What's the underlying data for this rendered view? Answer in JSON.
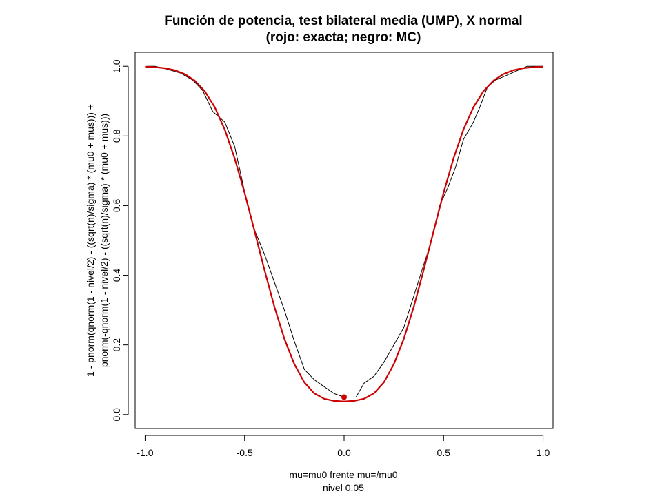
{
  "chart_data": {
    "type": "line",
    "title": "Función de potencia, test bilateral media (UMP), X normal",
    "subtitle": "(rojo: exacta; negro: MC)",
    "xlabel": [
      "mu=mu0 frente mu=/mu0",
      "nivel 0.05"
    ],
    "ylabel": [
      "1 - pnorm(qnorm(1 - nivel/2) - ((sqrt(n)/sigma) * (mu0 + mus))) +",
      "pnorm(-qnorm(1 - nivel/2) - ((sqrt(n)/sigma) * (mu0 + mus)))"
    ],
    "xlim": [
      -1.05,
      1.05
    ],
    "ylim": [
      -0.04,
      1.04
    ],
    "x_ticks": [
      -1.0,
      -0.5,
      0.0,
      0.5,
      1.0
    ],
    "x_tick_labels": [
      "-1.0",
      "-0.5",
      "0.0",
      "0.5",
      "1.0"
    ],
    "y_ticks": [
      0.0,
      0.2,
      0.4,
      0.6,
      0.8,
      1.0
    ],
    "y_tick_labels": [
      "0.0",
      "0.2",
      "0.4",
      "0.6",
      "0.8",
      "1.0"
    ],
    "hline": 0.05,
    "grid": false,
    "series": [
      {
        "color": "#cc0000",
        "x": [
          -1.0,
          -0.95,
          -0.9,
          -0.85,
          -0.8,
          -0.75,
          -0.7,
          -0.65,
          -0.6,
          -0.55,
          -0.5,
          -0.45,
          -0.4,
          -0.35,
          -0.3,
          -0.25,
          -0.2,
          -0.15,
          -0.1,
          -0.05,
          0.0,
          0.05,
          0.1,
          0.15,
          0.2,
          0.25,
          0.3,
          0.35,
          0.4,
          0.45,
          0.5,
          0.55,
          0.6,
          0.65,
          0.7,
          0.75,
          0.8,
          0.85,
          0.9,
          0.95,
          1.0
        ],
        "y": [
          0.9988,
          0.9975,
          0.9945,
          0.9885,
          0.9774,
          0.9586,
          0.9282,
          0.8826,
          0.8187,
          0.7358,
          0.6371,
          0.5273,
          0.4149,
          0.3092,
          0.2175,
          0.1446,
          0.0925,
          0.0608,
          0.0455,
          0.0394,
          0.0378,
          0.0394,
          0.0455,
          0.0608,
          0.0925,
          0.1446,
          0.2175,
          0.3092,
          0.4149,
          0.5273,
          0.6371,
          0.7358,
          0.8187,
          0.8826,
          0.9282,
          0.9586,
          0.9774,
          0.9885,
          0.9945,
          0.9975,
          0.9988
        ]
      },
      {
        "color": "#000000",
        "x": [
          -0.99,
          -0.95,
          -0.88,
          -0.82,
          -0.76,
          -0.71,
          -0.66,
          -0.6,
          -0.55,
          -0.5,
          -0.45,
          -0.4,
          -0.35,
          -0.3,
          -0.25,
          -0.2,
          -0.15,
          -0.1,
          -0.05,
          0.0,
          0.06,
          0.1,
          0.15,
          0.2,
          0.25,
          0.3,
          0.35,
          0.4,
          0.44,
          0.48,
          0.52,
          0.56,
          0.6,
          0.65,
          0.68,
          0.72,
          0.76,
          0.8,
          0.84,
          0.88,
          0.92,
          0.96,
          1.0
        ],
        "y": [
          1.0,
          1.0,
          0.99,
          0.98,
          0.96,
          0.93,
          0.87,
          0.84,
          0.77,
          0.64,
          0.53,
          0.46,
          0.38,
          0.3,
          0.21,
          0.13,
          0.1,
          0.08,
          0.06,
          0.05,
          0.05,
          0.09,
          0.11,
          0.15,
          0.2,
          0.25,
          0.34,
          0.43,
          0.5,
          0.6,
          0.65,
          0.71,
          0.79,
          0.84,
          0.88,
          0.94,
          0.96,
          0.97,
          0.98,
          0.99,
          1.0,
          1.0,
          1.0
        ]
      }
    ],
    "marker": {
      "x": 0.0,
      "y": 0.05,
      "color": "#cc0000"
    }
  }
}
